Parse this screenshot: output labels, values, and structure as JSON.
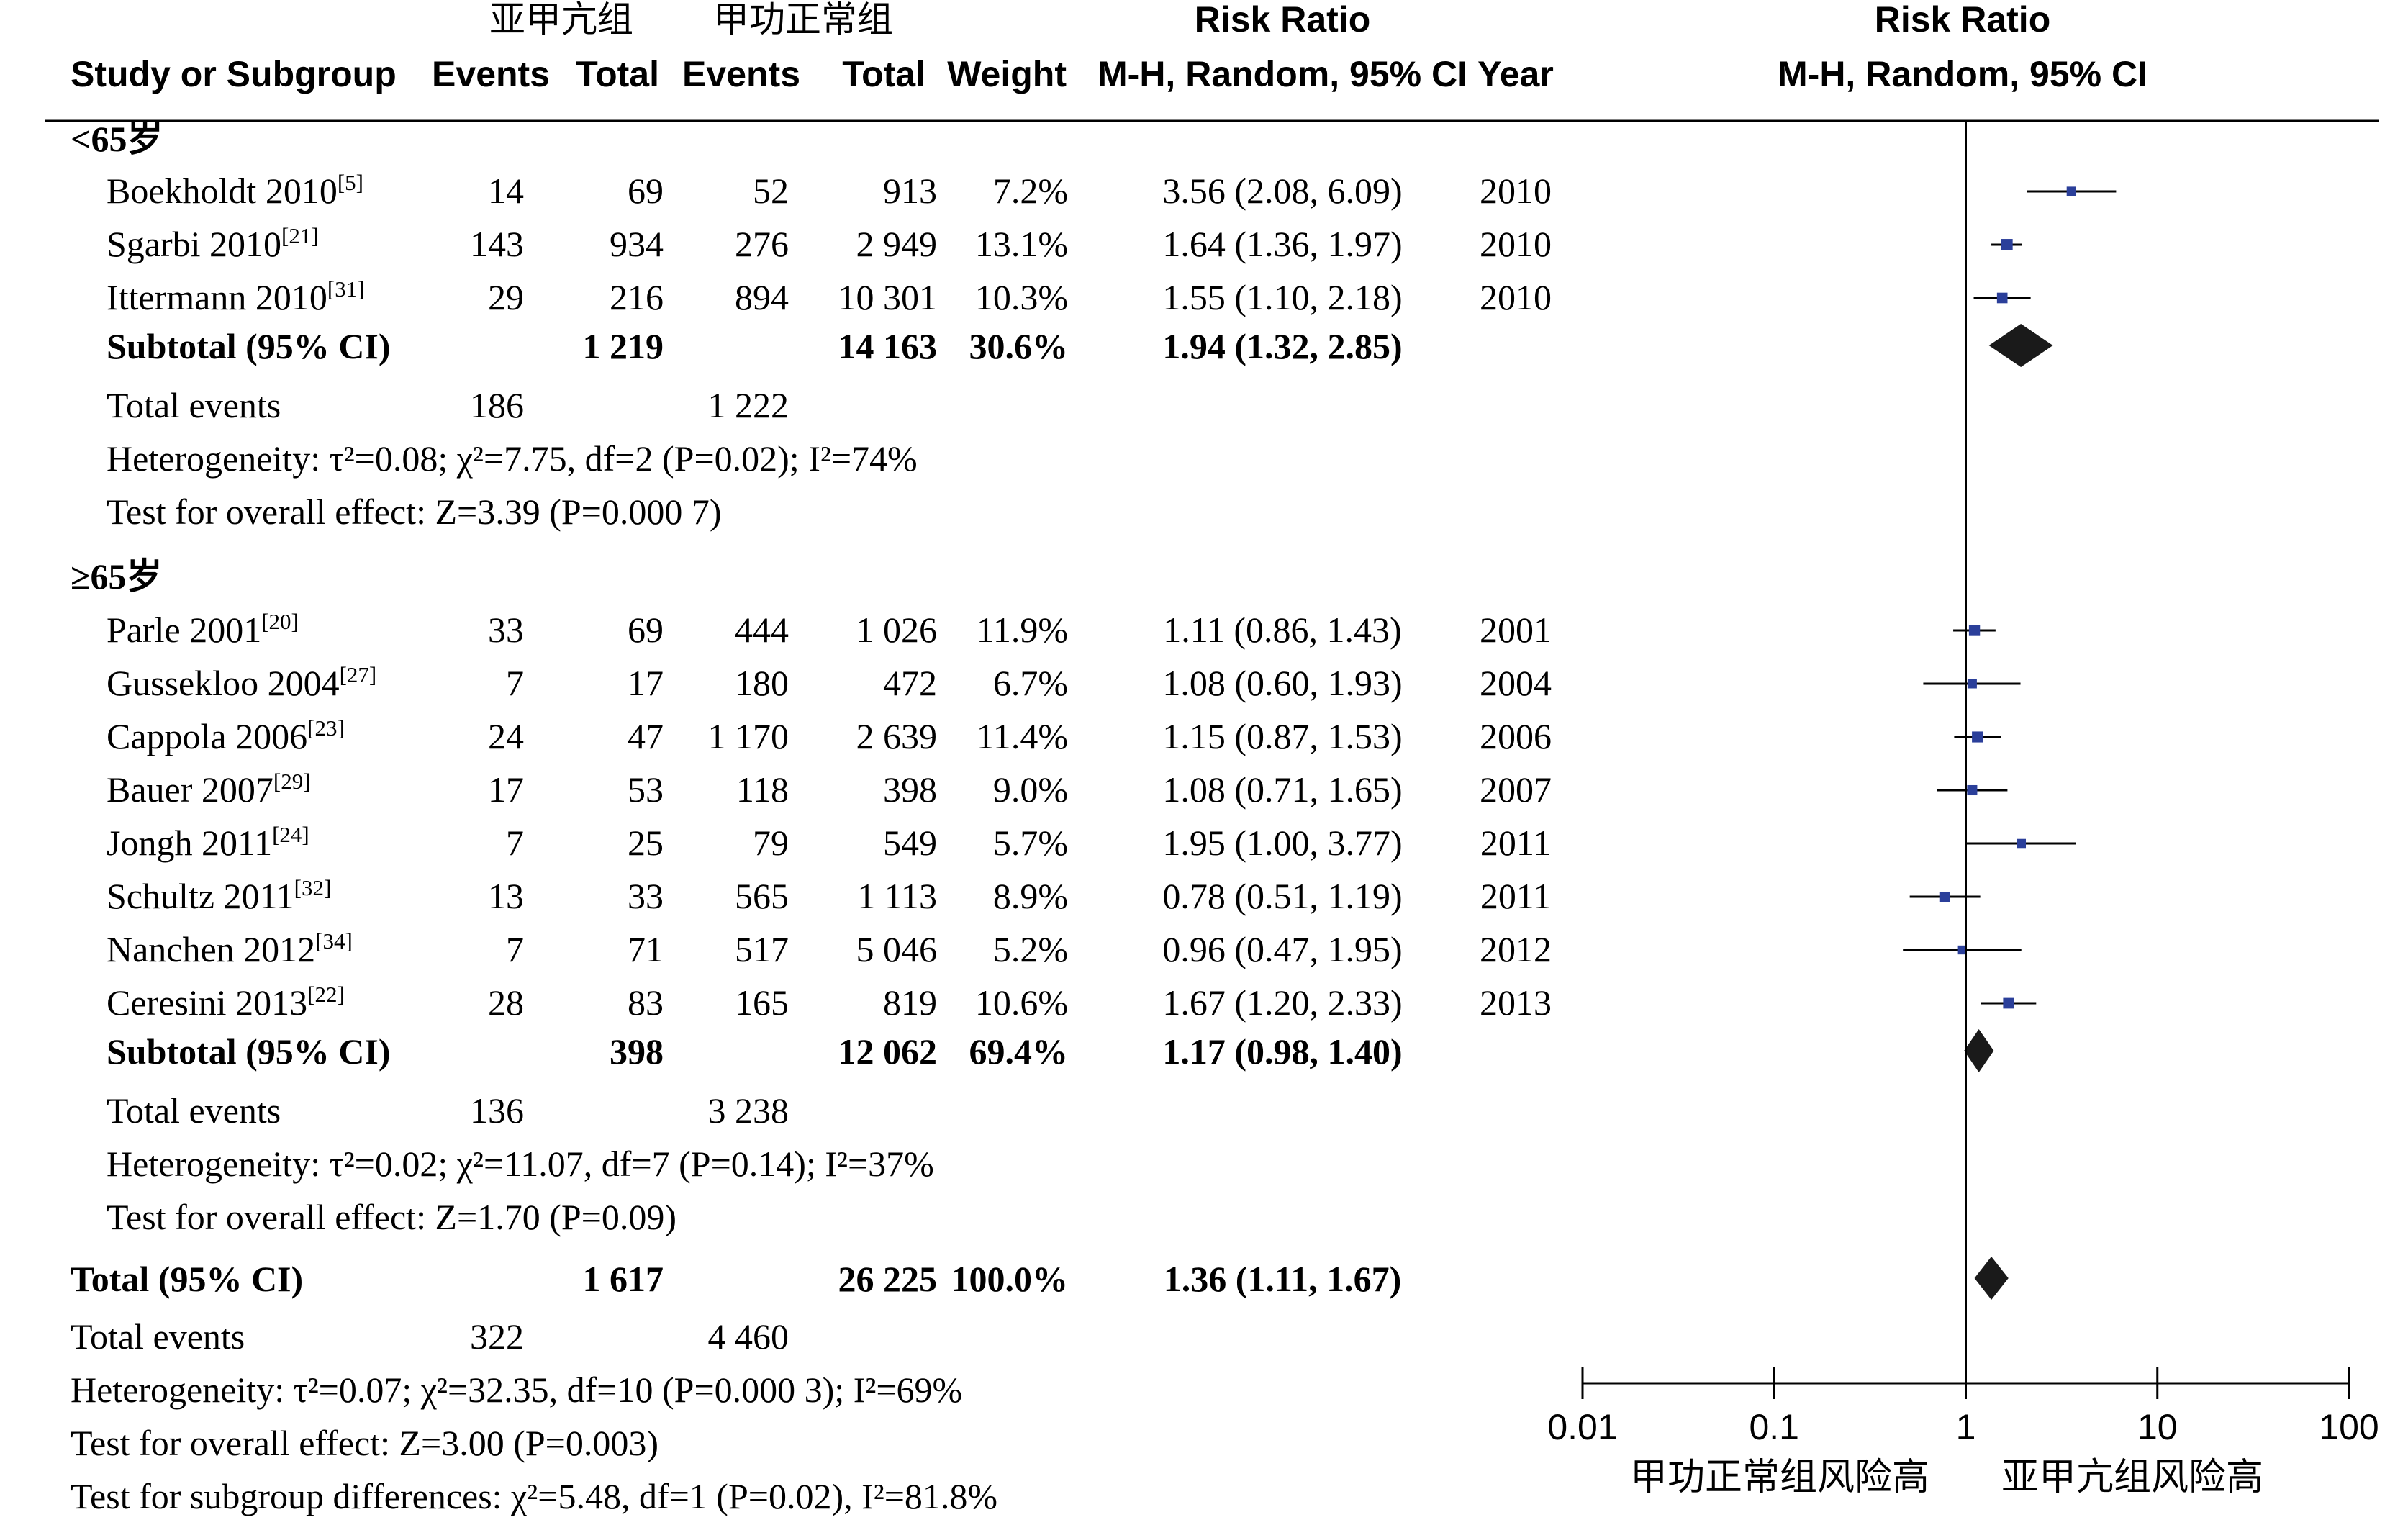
{
  "headers": {
    "group_exp": "亚甲亢组",
    "group_ctl": "甲功正常组",
    "risk_ratio": "Risk Ratio",
    "study_or_subgroup": "Study or Subgroup",
    "events": "Events",
    "total": "Total",
    "weight": "Weight",
    "method": "M-H, Random, 95% CI",
    "year": "Year"
  },
  "chart_data": {
    "type": "forest",
    "x_scale": "log",
    "xlim": [
      0.01,
      100
    ],
    "x_ticks": [
      "0.01",
      "0.1",
      "1",
      "10",
      "100"
    ],
    "favours_left": "甲功正常组风险高",
    "favours_right": "亚甲亢组风险高",
    "subgroups": [
      {
        "label": "<65岁",
        "studies": [
          {
            "name": "Boekholdt 2010",
            "ref": "[5]",
            "e_events": "14",
            "e_total": "69",
            "c_events": "52",
            "c_total": "913",
            "weight": "7.2%",
            "ci": "3.56 (2.08, 6.09)",
            "year": "2010",
            "rr": 3.56,
            "lo": 2.08,
            "hi": 6.09,
            "w": 7.2
          },
          {
            "name": "Sgarbi 2010",
            "ref": "[21]",
            "e_events": "143",
            "e_total": "934",
            "c_events": "276",
            "c_total": "2 949",
            "weight": "13.1%",
            "ci": "1.64 (1.36, 1.97)",
            "year": "2010",
            "rr": 1.64,
            "lo": 1.36,
            "hi": 1.97,
            "w": 13.1
          },
          {
            "name": "Ittermann 2010",
            "ref": "[31]",
            "e_events": "29",
            "e_total": "216",
            "c_events": "894",
            "c_total": "10 301",
            "weight": "10.3%",
            "ci": "1.55 (1.10, 2.18)",
            "year": "2010",
            "rr": 1.55,
            "lo": 1.1,
            "hi": 2.18,
            "w": 10.3
          }
        ],
        "subtotal": {
          "label": "Subtotal (95% CI)",
          "e_total": "1 219",
          "c_total": "14 163",
          "weight": "30.6%",
          "ci": "1.94 (1.32, 2.85)",
          "rr": 1.94,
          "lo": 1.32,
          "hi": 2.85
        },
        "total_events": {
          "label": "Total events",
          "e": "186",
          "c": "1 222"
        },
        "heterogeneity": "Heterogeneity: τ²=0.08; χ²=7.75, df=2 (P=0.02); I²=74%",
        "overall_effect": "Test for overall effect: Z=3.39 (P=0.000 7)"
      },
      {
        "label": "≥65岁",
        "studies": [
          {
            "name": "Parle 2001",
            "ref": "[20]",
            "e_events": "33",
            "e_total": "69",
            "c_events": "444",
            "c_total": "1 026",
            "weight": "11.9%",
            "ci": "1.11 (0.86, 1.43)",
            "year": "2001",
            "rr": 1.11,
            "lo": 0.86,
            "hi": 1.43,
            "w": 11.9
          },
          {
            "name": "Gussekloo 2004",
            "ref": "[27]",
            "e_events": "7",
            "e_total": "17",
            "c_events": "180",
            "c_total": "472",
            "weight": "6.7%",
            "ci": "1.08 (0.60, 1.93)",
            "year": "2004",
            "rr": 1.08,
            "lo": 0.6,
            "hi": 1.93,
            "w": 6.7
          },
          {
            "name": "Cappola 2006",
            "ref": "[23]",
            "e_events": "24",
            "e_total": "47",
            "c_events": "1 170",
            "c_total": "2 639",
            "weight": "11.4%",
            "ci": "1.15 (0.87, 1.53)",
            "year": "2006",
            "rr": 1.15,
            "lo": 0.87,
            "hi": 1.53,
            "w": 11.4
          },
          {
            "name": "Bauer 2007",
            "ref": "[29]",
            "e_events": "17",
            "e_total": "53",
            "c_events": "118",
            "c_total": "398",
            "weight": "9.0%",
            "ci": "1.08 (0.71, 1.65)",
            "year": "2007",
            "rr": 1.08,
            "lo": 0.71,
            "hi": 1.65,
            "w": 9.0
          },
          {
            "name": "Jongh 2011",
            "ref": "[24]",
            "e_events": "7",
            "e_total": "25",
            "c_events": "79",
            "c_total": "549",
            "weight": "5.7%",
            "ci": "1.95 (1.00, 3.77)",
            "year": "2011",
            "rr": 1.95,
            "lo": 1.0,
            "hi": 3.77,
            "w": 5.7
          },
          {
            "name": "Schultz 2011",
            "ref": "[32]",
            "e_events": "13",
            "e_total": "33",
            "c_events": "565",
            "c_total": "1 113",
            "weight": "8.9%",
            "ci": "0.78 (0.51, 1.19)",
            "year": "2011",
            "rr": 0.78,
            "lo": 0.51,
            "hi": 1.19,
            "w": 8.9
          },
          {
            "name": "Nanchen 2012",
            "ref": "[34]",
            "e_events": "7",
            "e_total": "71",
            "c_events": "517",
            "c_total": "5 046",
            "weight": "5.2%",
            "ci": "0.96 (0.47, 1.95)",
            "year": "2012",
            "rr": 0.96,
            "lo": 0.47,
            "hi": 1.95,
            "w": 5.2
          },
          {
            "name": "Ceresini 2013",
            "ref": "[22]",
            "e_events": "28",
            "e_total": "83",
            "c_events": "165",
            "c_total": "819",
            "weight": "10.6%",
            "ci": "1.67 (1.20, 2.33)",
            "year": "2013",
            "rr": 1.67,
            "lo": 1.2,
            "hi": 2.33,
            "w": 10.6
          }
        ],
        "subtotal": {
          "label": "Subtotal (95% CI)",
          "e_total": "398",
          "c_total": "12 062",
          "weight": "69.4%",
          "ci": "1.17 (0.98, 1.40)",
          "rr": 1.17,
          "lo": 0.98,
          "hi": 1.4
        },
        "total_events": {
          "label": "Total events",
          "e": "136",
          "c": "3 238"
        },
        "heterogeneity": "Heterogeneity: τ²=0.02; χ²=11.07, df=7 (P=0.14); I²=37%",
        "overall_effect": "Test for overall effect: Z=1.70 (P=0.09)"
      }
    ],
    "total": {
      "label": "Total (95% CI)",
      "e_total": "1 617",
      "c_total": "26 225",
      "weight": "100.0%",
      "ci": "1.36 (1.11, 1.67)",
      "rr": 1.36,
      "lo": 1.11,
      "hi": 1.67
    },
    "total_events": {
      "label": "Total events",
      "e": "322",
      "c": "4 460"
    },
    "heterogeneity": "Heterogeneity: τ²=0.07; χ²=32.35, df=10 (P=0.000 3); I²=69%",
    "overall_effect": "Test for overall effect: Z=3.00 (P=0.003)",
    "subgroup_differences": "Test for subgroup differences: χ²=5.48, df=1 (P=0.02), I²=81.8%",
    "colors": {
      "marker": "#2b3f9a",
      "diamond": "#1a1a1a",
      "line": "#000000"
    }
  }
}
